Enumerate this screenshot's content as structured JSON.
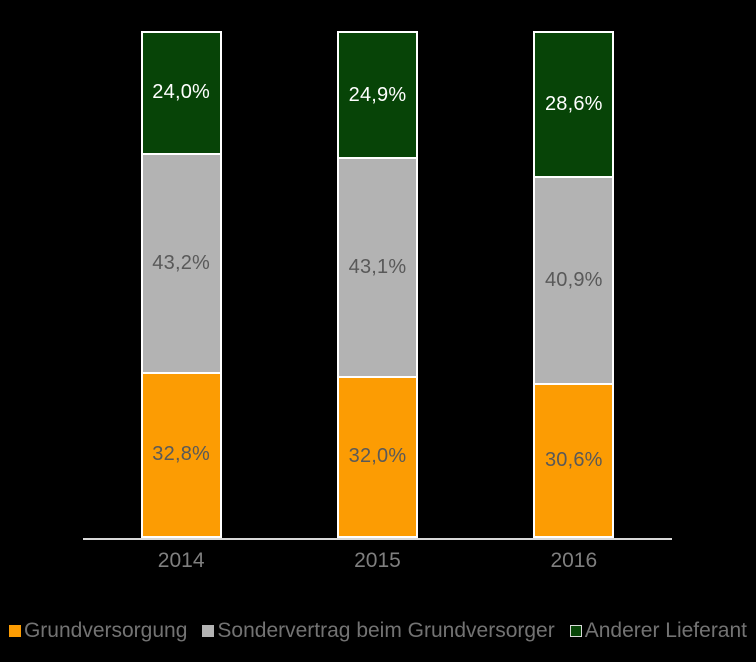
{
  "background_color": "#000000",
  "axis_color": "#D9D9D9",
  "bar_border_color": "#FFFFFF",
  "tick_label_color": "#7F7F7F",
  "legend_text_color": "#737373",
  "chart_data": {
    "type": "bar",
    "stacked": true,
    "title": "",
    "xlabel": "",
    "ylabel": "",
    "ylim": [
      0,
      100
    ],
    "grid": false,
    "legend_position": "bottom",
    "categories": [
      "2014",
      "2015",
      "2016"
    ],
    "series": [
      {
        "name": "Grundversorgung",
        "color": "#FC9C03",
        "label_color": "#595959",
        "swatch_border": "none",
        "values": [
          32.8,
          32.0,
          30.6
        ],
        "labels": [
          "32,8%",
          "32,0%",
          "30,6%"
        ]
      },
      {
        "name": "Sondervertrag beim Grundversorger",
        "color": "#B3B3B3",
        "label_color": "#595959",
        "swatch_border": "none",
        "values": [
          43.2,
          43.1,
          40.9
        ],
        "labels": [
          "43,2%",
          "43,1%",
          "40,9%"
        ]
      },
      {
        "name": "Anderer Lieferant",
        "color": "#074407",
        "label_color": "#FFFFFF",
        "swatch_border": "#D9D9D9",
        "values": [
          24.0,
          24.9,
          28.6
        ],
        "labels": [
          "24,0%",
          "24,9%",
          "28,6%"
        ]
      }
    ]
  }
}
